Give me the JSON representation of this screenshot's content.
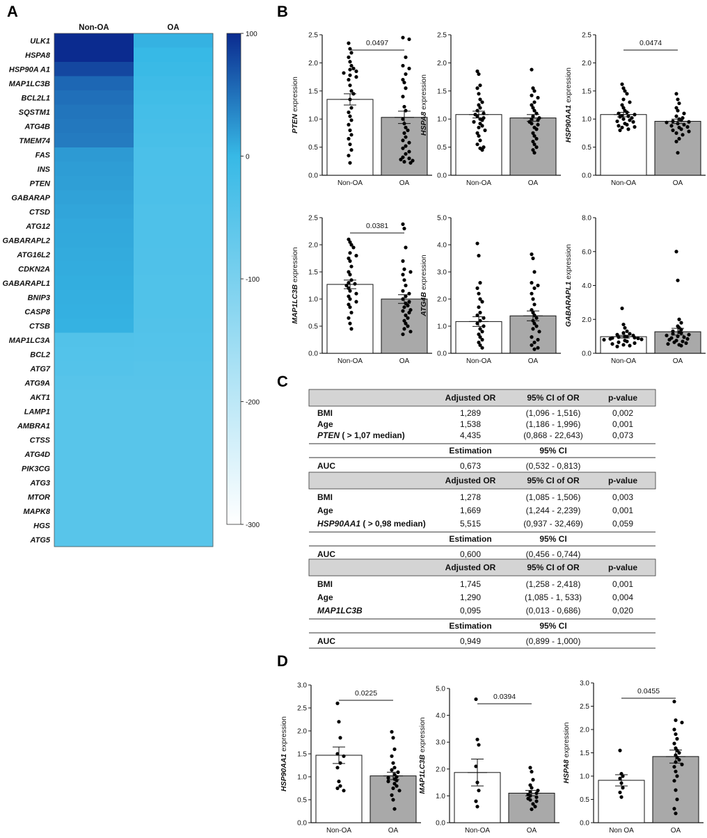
{
  "panel_letters": {
    "a": "A",
    "b": "B",
    "c": "C",
    "d": "D"
  },
  "heatmap": {
    "columns": [
      "Non-OA",
      "OA"
    ],
    "genes": [
      "ULK1",
      "HSPA8",
      "HSP90A A1",
      "MAP1LC3B",
      "BCL2L1",
      "SQSTM1",
      "ATG4B",
      "TMEM74",
      "FAS",
      "INS",
      "PTEN",
      "GABARAP",
      "CTSD",
      "ATG12",
      "GABARAPL2",
      "ATG16L2",
      "CDKN2A",
      "GABARAPL1",
      "BNIP3",
      "CASP8",
      "CTSB",
      "MAP1LC3A",
      "BCL2",
      "ATG7",
      "ATG9A",
      "AKT1",
      "LAMP1",
      "AMBRA1",
      "CTSS",
      "ATG4D",
      "PIK3CG",
      "ATG3",
      "MTOR",
      "MAPK8",
      "HGS",
      "ATG5"
    ],
    "values_non_oa": [
      100,
      100,
      80,
      58,
      52,
      48,
      46,
      44,
      22,
      20,
      18,
      16,
      14,
      12,
      11,
      10,
      9,
      8,
      7,
      6,
      5,
      -40,
      -42,
      -44,
      -48,
      -50,
      -50,
      -50,
      -50,
      -50,
      -50,
      -50,
      -50,
      -50,
      -50,
      -50
    ],
    "values_oa": [
      5,
      0,
      -5,
      -10,
      -15,
      -20,
      -22,
      -25,
      -30,
      -30,
      -32,
      -32,
      -34,
      -34,
      -35,
      -36,
      -36,
      -37,
      -38,
      -38,
      -40,
      -42,
      -44,
      -46,
      -48,
      -50,
      -50,
      -50,
      -50,
      -50,
      -50,
      -50,
      -50,
      -50,
      -50,
      -50
    ],
    "colorbar": {
      "ticks": [
        "100",
        "0",
        "-100",
        "-200",
        "-300"
      ],
      "min": -300,
      "max": 100,
      "color_high": "#0b2b8f",
      "color_mid": "#37b9e6",
      "color_low": "#ffffff"
    }
  },
  "chart_data": [
    {
      "type": "bar",
      "panel": "B",
      "ylabel_gene": "PTEN",
      "ylabel_rest": " expression",
      "categories": [
        "Non-OA",
        "OA"
      ],
      "means": [
        1.35,
        1.03
      ],
      "sem": [
        0.1,
        0.11
      ],
      "ylim": [
        0,
        2.5
      ],
      "yticks": [
        "0.0",
        "0.5",
        "1.0",
        "1.5",
        "2.0",
        "2.5"
      ],
      "pvalue": "0.0497",
      "points": [
        [
          2.35,
          2.25,
          2.18,
          2.1,
          2.02,
          1.95,
          1.9,
          1.88,
          1.85,
          1.82,
          1.78,
          1.75,
          1.7,
          1.6,
          1.5,
          1.45,
          1.35,
          1.2,
          1.12,
          1.05,
          0.98,
          0.9,
          0.8,
          0.72,
          0.65,
          0.55,
          0.45,
          0.35,
          0.22
        ],
        [
          2.45,
          2.42,
          2.1,
          1.95,
          1.9,
          1.8,
          1.7,
          1.65,
          1.55,
          1.4,
          1.22,
          1.15,
          1.0,
          0.92,
          0.85,
          0.8,
          0.75,
          0.68,
          0.62,
          0.58,
          0.52,
          0.48,
          0.42,
          0.38,
          0.32,
          0.3,
          0.28,
          0.26,
          0.24,
          0.22
        ]
      ]
    },
    {
      "type": "bar",
      "panel": "B",
      "ylabel_gene": "HSPA8",
      "ylabel_rest": " expression",
      "categories": [
        "Non-OA",
        "OA"
      ],
      "means": [
        1.08,
        1.02
      ],
      "sem": [
        0.06,
        0.06
      ],
      "ylim": [
        0,
        2.5
      ],
      "yticks": [
        "0.0",
        "0.5",
        "1.0",
        "1.5",
        "2.0",
        "2.5"
      ],
      "pvalue": "",
      "points": [
        [
          1.85,
          1.8,
          1.6,
          1.55,
          1.45,
          1.35,
          1.3,
          1.25,
          1.2,
          1.15,
          1.1,
          1.08,
          1.05,
          1.02,
          1.0,
          0.98,
          0.95,
          0.92,
          0.88,
          0.85,
          0.8,
          0.75,
          0.7,
          0.62,
          0.55,
          0.5,
          0.48,
          0.45
        ],
        [
          1.88,
          1.55,
          1.5,
          1.42,
          1.38,
          1.3,
          1.25,
          1.2,
          1.15,
          1.1,
          1.05,
          1.02,
          1.0,
          0.98,
          0.95,
          0.92,
          0.9,
          0.85,
          0.82,
          0.75,
          0.7,
          0.65,
          0.6,
          0.55,
          0.5,
          0.45,
          0.4
        ]
      ]
    },
    {
      "type": "bar",
      "panel": "B",
      "ylabel_gene": "HSP90AA1",
      "ylabel_rest": " expression",
      "categories": [
        "Non-OA",
        "OA"
      ],
      "means": [
        1.08,
        0.96
      ],
      "sem": [
        0.04,
        0.04
      ],
      "ylim": [
        0,
        2.5
      ],
      "yticks": [
        "0.0",
        "0.5",
        "1.0",
        "1.5",
        "2.0",
        "2.5"
      ],
      "pvalue": "0.0474",
      "points": [
        [
          1.62,
          1.55,
          1.5,
          1.45,
          1.35,
          1.3,
          1.25,
          1.2,
          1.15,
          1.12,
          1.1,
          1.08,
          1.06,
          1.05,
          1.04,
          1.02,
          1.0,
          0.98,
          0.96,
          0.95,
          0.92,
          0.9,
          0.88,
          0.86,
          0.85,
          0.82,
          0.8
        ],
        [
          1.45,
          1.35,
          1.28,
          1.2,
          1.15,
          1.1,
          1.05,
          1.02,
          1.0,
          0.98,
          0.96,
          0.95,
          0.94,
          0.92,
          0.9,
          0.88,
          0.86,
          0.85,
          0.82,
          0.8,
          0.78,
          0.75,
          0.72,
          0.65,
          0.6,
          0.4
        ]
      ]
    },
    {
      "type": "bar",
      "panel": "B",
      "ylabel_gene": "MAP1LC3B",
      "ylabel_rest": " expression",
      "categories": [
        "Non-OA",
        "OA"
      ],
      "means": [
        1.27,
        1.0
      ],
      "sem": [
        0.08,
        0.08
      ],
      "ylim": [
        0,
        2.5
      ],
      "yticks": [
        "0.0",
        "0.5",
        "1.0",
        "1.5",
        "2.0",
        "2.5"
      ],
      "pvalue": "0.0381",
      "points": [
        [
          2.1,
          2.05,
          2.0,
          1.95,
          1.85,
          1.8,
          1.75,
          1.7,
          1.6,
          1.5,
          1.45,
          1.35,
          1.3,
          1.28,
          1.25,
          1.2,
          1.15,
          1.1,
          1.05,
          1.0,
          0.95,
          0.9,
          0.85,
          0.75,
          0.65,
          0.55,
          0.45
        ],
        [
          2.38,
          2.3,
          1.95,
          1.7,
          1.55,
          1.5,
          1.45,
          1.35,
          1.25,
          1.15,
          1.1,
          1.05,
          1.0,
          0.95,
          0.92,
          0.88,
          0.85,
          0.8,
          0.78,
          0.75,
          0.7,
          0.65,
          0.6,
          0.55,
          0.5,
          0.45,
          0.4,
          0.35
        ]
      ]
    },
    {
      "type": "bar",
      "panel": "B",
      "ylabel_gene": "ATG4B",
      "ylabel_rest": " expression",
      "categories": [
        "Non-OA",
        "OA"
      ],
      "means": [
        1.17,
        1.38
      ],
      "sem": [
        0.18,
        0.18
      ],
      "ylim": [
        0,
        5.0
      ],
      "yticks": [
        "0.0",
        "1.0",
        "2.0",
        "3.0",
        "4.0",
        "5.0"
      ],
      "pvalue": "",
      "points": [
        [
          4.05,
          3.6,
          2.6,
          2.4,
          2.2,
          2.0,
          1.9,
          1.7,
          1.5,
          1.4,
          1.3,
          1.2,
          1.1,
          1.0,
          0.9,
          0.8,
          0.7,
          0.6,
          0.5,
          0.4,
          0.3,
          0.2
        ],
        [
          3.65,
          3.5,
          3.0,
          2.6,
          2.5,
          2.4,
          2.2,
          2.0,
          1.8,
          1.6,
          1.5,
          1.4,
          1.3,
          1.2,
          1.1,
          1.0,
          0.9,
          0.8,
          0.6,
          0.5,
          0.4,
          0.3,
          0.2,
          0.15
        ]
      ]
    },
    {
      "type": "bar",
      "panel": "B",
      "ylabel_gene": "GABARAPL1",
      "ylabel_rest": " expression",
      "categories": [
        "Non-OA",
        "OA"
      ],
      "means": [
        0.98,
        1.27
      ],
      "sem": [
        0.08,
        0.2
      ],
      "ylim": [
        0,
        8.0
      ],
      "yticks": [
        "0.0",
        "2.0",
        "4.0",
        "6.0",
        "8.0"
      ],
      "pvalue": "",
      "points": [
        [
          2.65,
          1.7,
          1.5,
          1.3,
          1.2,
          1.15,
          1.1,
          1.05,
          1.0,
          0.98,
          0.95,
          0.92,
          0.9,
          0.88,
          0.85,
          0.82,
          0.8,
          0.75,
          0.7,
          0.65,
          0.6,
          0.55,
          0.5,
          0.45,
          0.4
        ],
        [
          6.0,
          4.3,
          2.0,
          1.8,
          1.6,
          1.5,
          1.4,
          1.3,
          1.25,
          1.2,
          1.15,
          1.1,
          1.05,
          1.0,
          0.95,
          0.9,
          0.85,
          0.8,
          0.75,
          0.7,
          0.65,
          0.6,
          0.55,
          0.5,
          0.45
        ]
      ]
    },
    {
      "type": "bar",
      "panel": "D",
      "ylabel_gene": "HSP90AA1",
      "ylabel_rest": " expression",
      "categories": [
        "Non-OA",
        "OA"
      ],
      "means": [
        1.47,
        1.02
      ],
      "sem": [
        0.18,
        0.08
      ],
      "ylim": [
        0,
        3.0
      ],
      "yticks": [
        "0.0",
        "0.5",
        "1.0",
        "1.5",
        "2.0",
        "2.5",
        "3.0"
      ],
      "pvalue": "0.0225",
      "points": [
        [
          2.6,
          2.2,
          1.85,
          1.5,
          1.45,
          1.3,
          1.2,
          0.9,
          0.8,
          0.75,
          0.7
        ],
        [
          1.98,
          1.85,
          1.6,
          1.45,
          1.3,
          1.2,
          1.15,
          1.1,
          1.05,
          1.0,
          0.98,
          0.95,
          0.92,
          0.9,
          0.85,
          0.8,
          0.75,
          0.7,
          0.6,
          0.5,
          0.3
        ]
      ]
    },
    {
      "type": "bar",
      "panel": "D",
      "ylabel_gene": "MAP1LC3B",
      "ylabel_rest": " expression",
      "categories": [
        "Non-OA",
        "OA"
      ],
      "means": [
        1.87,
        1.1
      ],
      "sem": [
        0.5,
        0.1
      ],
      "ylim": [
        0,
        5.0
      ],
      "yticks": [
        "0.0",
        "1.0",
        "2.0",
        "3.0",
        "4.0",
        "5.0"
      ],
      "pvalue": "0.0394",
      "points": [
        [
          4.6,
          3.1,
          2.9,
          2.1,
          1.5,
          1.2,
          0.8,
          0.6
        ],
        [
          2.05,
          1.9,
          1.6,
          1.4,
          1.3,
          1.2,
          1.15,
          1.1,
          1.05,
          1.0,
          0.95,
          0.9,
          0.85,
          0.8,
          0.7,
          0.6,
          0.5
        ]
      ]
    },
    {
      "type": "bar",
      "panel": "D",
      "ylabel_gene": "HSPA8",
      "ylabel_rest": " expression",
      "categories": [
        "Non OA",
        "OA"
      ],
      "means": [
        0.91,
        1.42
      ],
      "sem": [
        0.12,
        0.14
      ],
      "ylim": [
        0,
        3.0
      ],
      "yticks": [
        "0.0",
        "0.5",
        "1.0",
        "1.5",
        "2.0",
        "2.5",
        "3.0"
      ],
      "pvalue": "0.0455",
      "points": [
        [
          1.55,
          1.05,
          1.0,
          0.95,
          0.85,
          0.75,
          0.65,
          0.55
        ],
        [
          2.6,
          2.2,
          2.15,
          2.0,
          1.9,
          1.8,
          1.7,
          1.6,
          1.55,
          1.5,
          1.45,
          1.4,
          1.35,
          1.3,
          1.25,
          1.2,
          1.1,
          1.0,
          0.9,
          0.7,
          0.5,
          0.3,
          0.2
        ]
      ]
    }
  ],
  "table": {
    "blocks": [
      {
        "headers": [
          "Adjusted OR",
          "95% CI of OR",
          "p-value"
        ],
        "rows": [
          {
            "label": "BMI",
            "label2": "",
            "or": "1,289",
            "ci": "(1,096 - 1,516)",
            "p": "0,002"
          },
          {
            "label": "Age",
            "label2": "",
            "or": "1,538",
            "ci": "(1,186 - 1,996)",
            "p": "0,001"
          },
          {
            "label": "PTEN",
            "label2": " ( > 1,07 median)",
            "or": "4,435",
            "ci": "(0,868 - 22,643)",
            "p": "0,073"
          }
        ],
        "est_header": "Estimation",
        "ci_header": "95% CI",
        "auc_label": "AUC",
        "auc": "0,673",
        "auc_ci": "(0,532 - 0,813)"
      },
      {
        "headers": [
          "Adjusted OR",
          "95% CI of OR",
          "p-value"
        ],
        "rows": [
          {
            "label": "BMI",
            "label2": "",
            "or": "1,278",
            "ci": "(1,085 - 1,506)",
            "p": "0,003"
          },
          {
            "label": "Age",
            "label2": "",
            "or": "1,669",
            "ci": "(1,244 - 2,239)",
            "p": "0,001"
          },
          {
            "label": "HSP90AA1",
            "label2": " ( > 0,98 median)",
            "or": "5,515",
            "ci": "(0,937 - 32,469)",
            "p": "0,059"
          }
        ],
        "est_header": "Estimation",
        "ci_header": "95% CI",
        "auc_label": "AUC",
        "auc": "0,600",
        "auc_ci": "(0,456 - 0,744)"
      },
      {
        "headers": [
          "Adjusted OR",
          "95% CI of OR",
          "p-value"
        ],
        "rows": [
          {
            "label": "BMI",
            "label2": "",
            "or": "1,745",
            "ci": "(1,258 - 2,418)",
            "p": "0,001"
          },
          {
            "label": "Age",
            "label2": "",
            "or": "1,290",
            "ci": "(1,085 - 1, 533)",
            "p": "0,004"
          },
          {
            "label": "MAP1LC3B",
            "label2": "",
            "or": "0,095",
            "ci": "(0,013 - 0,686)",
            "p": "0,020"
          }
        ],
        "est_header": "Estimation",
        "ci_header": "95% CI",
        "auc_label": "AUC",
        "auc": "0,949",
        "auc_ci": "(0,899 - 1,000)"
      }
    ],
    "header_fill": "#d4d4d4"
  },
  "colors": {
    "bar_non_oa": "#ffffff",
    "bar_oa": "#a9a9a9",
    "dot": "#000000"
  }
}
